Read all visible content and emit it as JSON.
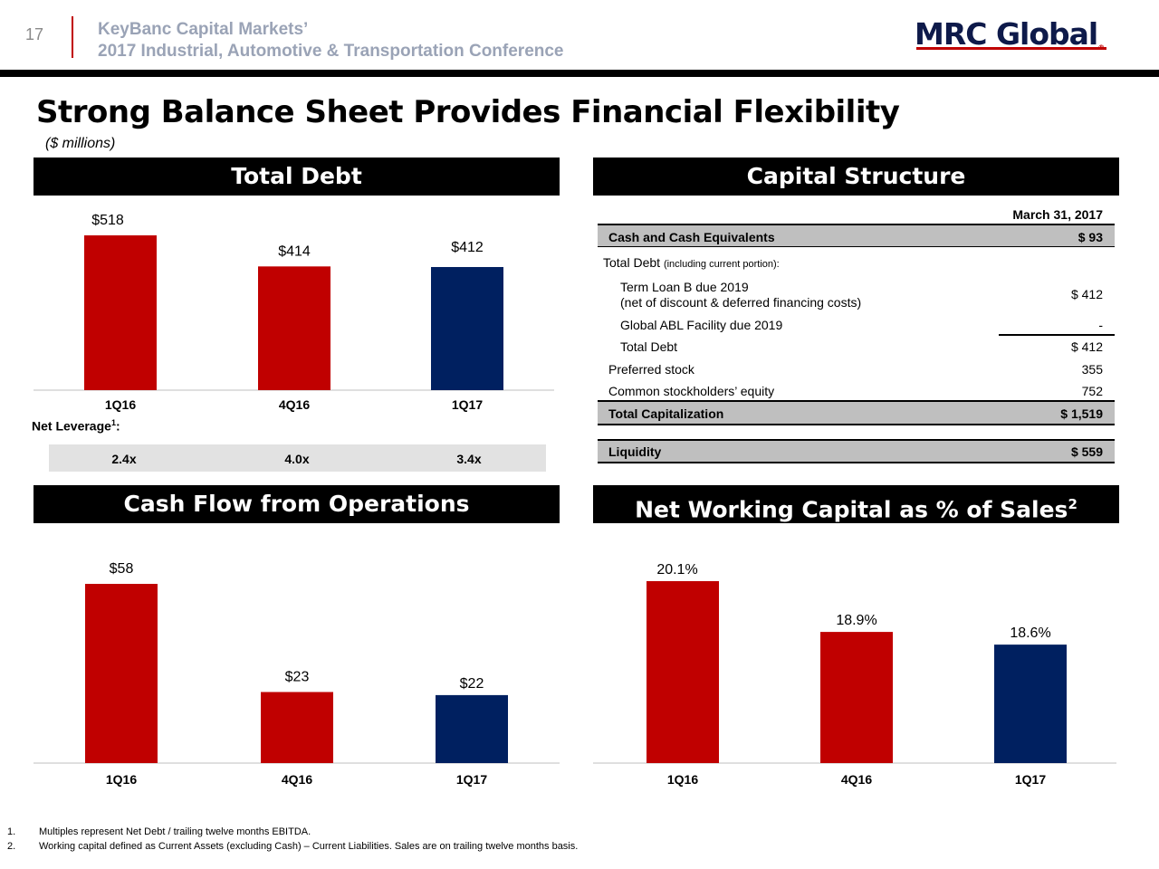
{
  "header": {
    "slide_number": "17",
    "conference_line1": "KeyBanc Capital Markets’",
    "conference_line2": "2017 Industrial, Automotive & Transportation Conference",
    "logo_text": "MRC Global",
    "logo_mark": "®"
  },
  "page": {
    "title": "Strong Balance Sheet Provides Financial Flexibility",
    "subtitle": "($ millions)"
  },
  "panels": {
    "total_debt": "Total Debt",
    "capital_structure": "Capital Structure",
    "cash_flow": "Cash Flow from Operations",
    "nwc": "Net Working Capital as % of Sales",
    "nwc_sup": "2"
  },
  "leverage": {
    "label": "Net Leverage",
    "label_sup": "1",
    "label_suffix": ":",
    "values": [
      "2.4x",
      "4.0x",
      "3.4x"
    ]
  },
  "capital_structure": {
    "date_header": "March 31, 2017",
    "cash_label": "Cash and Cash Equivalents",
    "cash_value": "$ 93",
    "total_debt_label": "Total Debt",
    "total_debt_note": "(including current portion):",
    "term_loan_label": "Term Loan B due 2019",
    "term_loan_note": "(net of discount & deferred financing costs)",
    "term_loan_value": "$ 412",
    "abl_label": "Global ABL Facility due 2019",
    "abl_value": "-",
    "subtotal_label": "Total Debt",
    "subtotal_value": "$ 412",
    "preferred_label": "Preferred stock",
    "preferred_value": "355",
    "common_label": "Common stockholders’ equity",
    "common_value": "752",
    "total_cap_label": "Total Capitalization",
    "total_cap_value": "$ 1,519",
    "liquidity_label": "Liquidity",
    "liquidity_value": "$ 559"
  },
  "colors": {
    "red": "#c00000",
    "navy": "#002060",
    "black": "#000000",
    "band": "#e2e2e2",
    "shade": "#bfbfbf"
  },
  "chart_data": [
    {
      "type": "bar",
      "title": "Total Debt",
      "categories": [
        "1Q16",
        "4Q16",
        "1Q17"
      ],
      "values": [
        518,
        414,
        412
      ],
      "labels": [
        "$518",
        "$414",
        "$412"
      ],
      "bar_colors": [
        "#c00000",
        "#c00000",
        "#002060"
      ],
      "ylim": [
        0,
        518
      ]
    },
    {
      "type": "bar",
      "title": "Cash Flow from Operations",
      "categories": [
        "1Q16",
        "4Q16",
        "1Q17"
      ],
      "values": [
        58,
        23,
        22
      ],
      "labels": [
        "$58",
        "$23",
        "$22"
      ],
      "bar_colors": [
        "#c00000",
        "#c00000",
        "#002060"
      ],
      "ylim": [
        0,
        58
      ]
    },
    {
      "type": "bar",
      "title": "Net Working Capital as % of Sales",
      "categories": [
        "1Q16",
        "4Q16",
        "1Q17"
      ],
      "values": [
        20.1,
        18.9,
        18.6
      ],
      "labels": [
        "20.1%",
        "18.9%",
        "18.6%"
      ],
      "bar_colors": [
        "#c00000",
        "#c00000",
        "#002060"
      ],
      "ylim": [
        15.8,
        20.1
      ]
    }
  ],
  "footnotes": [
    {
      "num": "1.",
      "text": "Multiples represent Net Debt / trailing twelve months EBITDA."
    },
    {
      "num": "2.",
      "text": "Working capital defined as Current Assets (excluding Cash) – Current Liabilities. Sales are on trailing twelve months basis."
    }
  ]
}
